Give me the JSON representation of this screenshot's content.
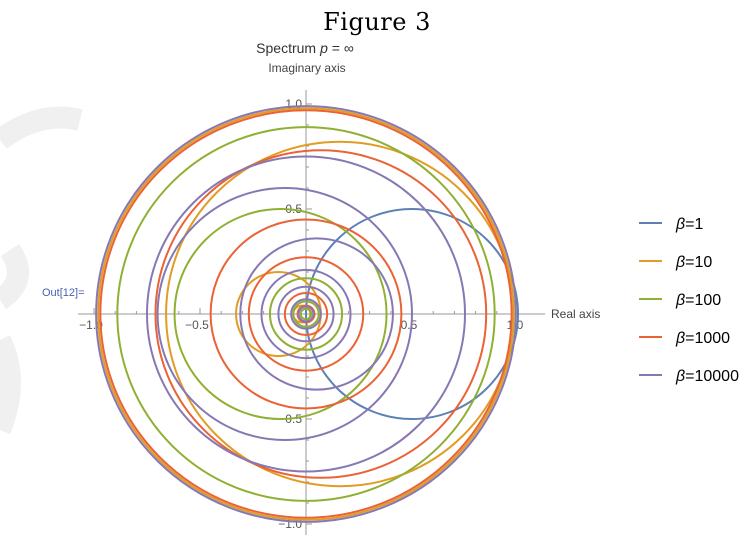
{
  "figure_title": "Figure 3",
  "out_label": "Out[12]=",
  "chart_data": {
    "type": "line",
    "title": "Spectrum p = ∞",
    "title_prefix": "Spectrum",
    "title_var": "p",
    "title_rest": " = ∞",
    "xlabel": "Real axis",
    "ylabel": "Imaginary axis",
    "xlim": [
      -1.0,
      1.0
    ],
    "ylim": [
      -1.0,
      1.0
    ],
    "x_ticks": [
      {
        "value": -1.0,
        "label": "−1.0"
      },
      {
        "value": -0.5,
        "label": "−0.5"
      },
      {
        "value": 0.5,
        "label": "0.5"
      },
      {
        "value": 1.0,
        "label": "1.0"
      }
    ],
    "y_ticks": [
      {
        "value": 1.0,
        "label": "1.0"
      },
      {
        "value": 0.5,
        "label": "0.5"
      },
      {
        "value": -0.5,
        "label": "−0.5"
      },
      {
        "value": -1.0,
        "label": "−1.0"
      }
    ],
    "grid": false,
    "legend_position": "right",
    "series": [
      {
        "name": "β=1",
        "symbol": "β",
        "value_label": "=1",
        "color": "#5e81b5",
        "circles": [
          {
            "cx": 0.5,
            "cy": 0.0,
            "r": 0.5
          }
        ]
      },
      {
        "name": "β=10",
        "symbol": "β",
        "value_label": "=10",
        "color": "#e19c24",
        "circles": [
          {
            "cx": 0.0,
            "cy": 0.0,
            "r": 0.98
          },
          {
            "cx": 0.16,
            "cy": 0.0,
            "r": 0.82
          },
          {
            "cx": -0.13,
            "cy": 0.0,
            "r": 0.2
          },
          {
            "cx": -0.02,
            "cy": 0.0,
            "r": 0.04
          }
        ]
      },
      {
        "name": "β=100",
        "symbol": "β",
        "value_label": "=100",
        "color": "#8fb032",
        "circles": [
          {
            "cx": 0.0,
            "cy": 0.0,
            "r": 0.89
          },
          {
            "cx": -0.12,
            "cy": 0.0,
            "r": 0.5
          },
          {
            "cx": 0.0,
            "cy": 0.0,
            "r": 0.17
          },
          {
            "cx": 0.0,
            "cy": 0.0,
            "r": 0.06
          },
          {
            "cx": 0.0,
            "cy": 0.0,
            "r": 0.025
          }
        ]
      },
      {
        "name": "β=1000",
        "symbol": "β",
        "value_label": "=1000",
        "color": "#eb6235",
        "circles": [
          {
            "cx": 0.0,
            "cy": 0.0,
            "r": 0.97
          },
          {
            "cx": 0.07,
            "cy": 0.0,
            "r": 0.78
          },
          {
            "cx": 0.0,
            "cy": 0.0,
            "r": 0.45
          },
          {
            "cx": 0.0,
            "cy": 0.0,
            "r": 0.27
          },
          {
            "cx": 0.0,
            "cy": 0.0,
            "r": 0.1
          },
          {
            "cx": 0.0,
            "cy": 0.0,
            "r": 0.04
          }
        ]
      },
      {
        "name": "β=10000",
        "symbol": "β",
        "value_label": "=10000",
        "color": "#8778b3",
        "circles": [
          {
            "cx": 0.0,
            "cy": 0.0,
            "r": 0.99
          },
          {
            "cx": 0.0,
            "cy": 0.0,
            "r": 0.75
          },
          {
            "cx": -0.1,
            "cy": 0.0,
            "r": 0.6
          },
          {
            "cx": 0.05,
            "cy": 0.0,
            "r": 0.36
          },
          {
            "cx": 0.0,
            "cy": 0.0,
            "r": 0.21
          },
          {
            "cx": 0.0,
            "cy": 0.0,
            "r": 0.13
          },
          {
            "cx": 0.0,
            "cy": 0.0,
            "r": 0.07
          },
          {
            "cx": 0.0,
            "cy": 0.0,
            "r": 0.035
          }
        ]
      }
    ]
  }
}
